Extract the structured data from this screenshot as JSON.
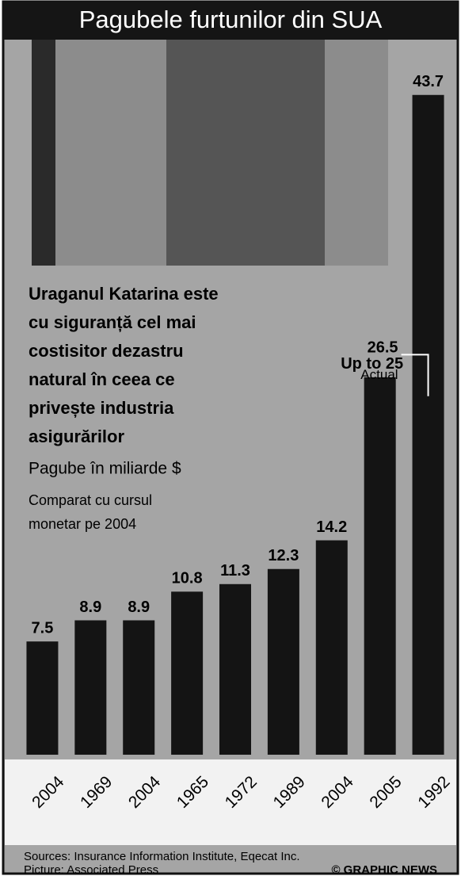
{
  "chart_data": {
    "type": "bar",
    "title": "Pagubele furtunilor din SUA",
    "headline": [
      "Uraganul Katarina este",
      "cu siguranță cel mai",
      "costisitor dezastru",
      "natural în ceea ce",
      "privește industria",
      "asigurărilor"
    ],
    "subtitle": "Pagube în miliarde $",
    "note": [
      "Comparat cu cursul",
      "monetar pe 2004"
    ],
    "categories": [
      "2004",
      "1969",
      "2004",
      "1965",
      "1972",
      "1989",
      "2004",
      "2005",
      "1992"
    ],
    "values": [
      7.5,
      8.9,
      8.9,
      10.8,
      11.3,
      12.3,
      14.2,
      25,
      43.7
    ],
    "value_labels": [
      "7.5",
      "8.9",
      "8.9",
      "10.8",
      "11.3",
      "12.3",
      "14.2",
      "Up to 25",
      "43.7"
    ],
    "annotation": {
      "value": 26.5,
      "label": "Actual"
    },
    "color": "#141414",
    "ylim": [
      0,
      45
    ],
    "sources": "Sources: Insurance Information Institute, Eqecat Inc.",
    "credit": "Picture: Associated Press",
    "copyright": "© GRAPHIC NEWS"
  }
}
